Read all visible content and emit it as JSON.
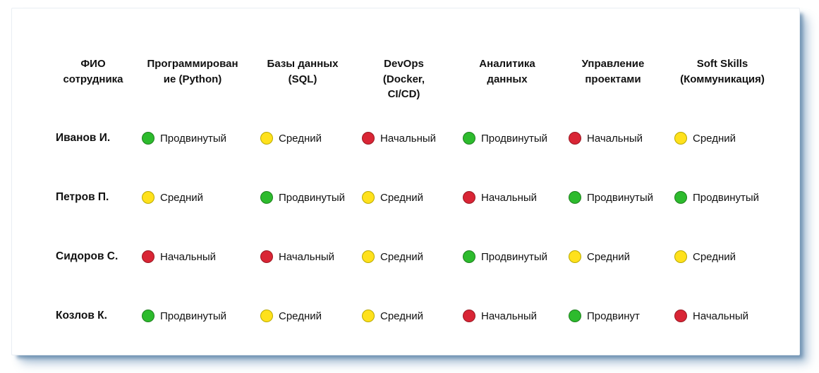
{
  "levels": {
    "green": {
      "label": "Продвинутый",
      "fill": "#2dbb2d",
      "border": "#1d7f1d"
    },
    "yellow": {
      "label": "Средний",
      "fill": "#ffe11c",
      "border": "#b9a900"
    },
    "red": {
      "label": "Начальный",
      "fill": "#d92535",
      "border": "#991722"
    }
  },
  "chart_data": {
    "type": "table",
    "title": "",
    "columns": [
      {
        "label": "ФИО сотрудника",
        "display_lines": [
          "ФИО",
          "сотрудника"
        ]
      },
      {
        "label": "Программирование (Python)",
        "display_lines": [
          "Программирован",
          "ие (Python)"
        ]
      },
      {
        "label": "Базы данных (SQL)",
        "display_lines": [
          "Базы данных",
          "(SQL)"
        ]
      },
      {
        "label": "DevOps (Docker, CI/CD)",
        "display_lines": [
          "DevOps",
          "(Docker,",
          "CI/CD)"
        ]
      },
      {
        "label": "Аналитика данных",
        "display_lines": [
          "Аналитика",
          "данных"
        ]
      },
      {
        "label": "Управление проектами",
        "display_lines": [
          "Управление",
          "проектами"
        ]
      },
      {
        "label": "Soft Skills (Коммуникация)",
        "display_lines": [
          "Soft Skills",
          "(Коммуникация)"
        ]
      }
    ],
    "rows": [
      {
        "name": "Иванов И.",
        "cells": [
          {
            "level": "Продвинутый",
            "color": "green"
          },
          {
            "level": "Средний",
            "color": "yellow"
          },
          {
            "level": "Начальный",
            "color": "red"
          },
          {
            "level": "Продвинутый",
            "color": "green"
          },
          {
            "level": "Начальный",
            "color": "red"
          },
          {
            "level": "Средний",
            "color": "yellow"
          }
        ]
      },
      {
        "name": "Петров П.",
        "cells": [
          {
            "level": "Средний",
            "color": "yellow"
          },
          {
            "level": "Продвинутый",
            "color": "green"
          },
          {
            "level": "Средний",
            "color": "yellow"
          },
          {
            "level": "Начальный",
            "color": "red"
          },
          {
            "level": "Продвинутый",
            "color": "green"
          },
          {
            "level": "Продвинутый",
            "color": "green"
          }
        ]
      },
      {
        "name": "Сидоров С.",
        "cells": [
          {
            "level": "Начальный",
            "color": "red"
          },
          {
            "level": "Начальный",
            "color": "red"
          },
          {
            "level": "Средний",
            "color": "yellow"
          },
          {
            "level": "Продвинутый",
            "color": "green"
          },
          {
            "level": "Средний",
            "color": "yellow"
          },
          {
            "level": "Средний",
            "color": "yellow"
          }
        ]
      },
      {
        "name": "Козлов К.",
        "cells": [
          {
            "level": "Продвинутый",
            "color": "green"
          },
          {
            "level": "Средний",
            "color": "yellow"
          },
          {
            "level": "Средний",
            "color": "yellow"
          },
          {
            "level": "Начальный",
            "color": "red"
          },
          {
            "level": "Продвинут",
            "color": "green"
          },
          {
            "level": "Начальный",
            "color": "red"
          }
        ]
      }
    ]
  }
}
